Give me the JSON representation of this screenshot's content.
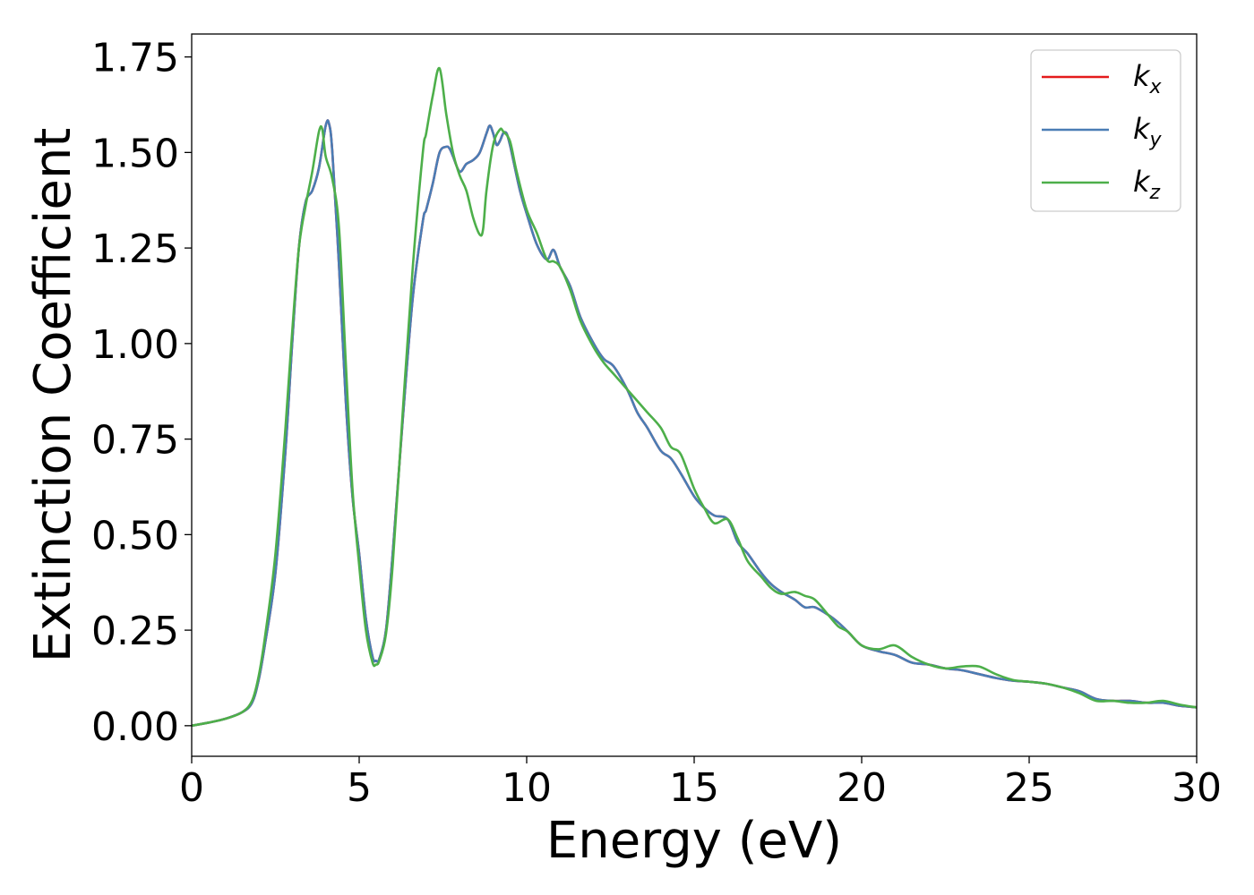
{
  "chart_data": {
    "type": "line",
    "xlabel": "Energy (eV)",
    "ylabel": "Extinction Coefficient",
    "xlim": [
      0,
      30
    ],
    "ylim": [
      -0.08,
      1.81
    ],
    "xticks": [
      0,
      5,
      10,
      15,
      20,
      25,
      30
    ],
    "xtick_labels": [
      "0",
      "5",
      "10",
      "15",
      "20",
      "25",
      "30"
    ],
    "yticks": [
      0.0,
      0.25,
      0.5,
      0.75,
      1.0,
      1.25,
      1.5,
      1.75
    ],
    "ytick_labels": [
      "0.00",
      "0.25",
      "0.50",
      "0.75",
      "1.00",
      "1.25",
      "1.50",
      "1.75"
    ],
    "grid": false,
    "legend_position": "top-right",
    "series": [
      {
        "name": "kx",
        "legend_base": "k",
        "legend_sub": "x",
        "color": "#e41a1c",
        "x": [
          0,
          0.5,
          1.0,
          1.5,
          1.8,
          2.0,
          2.2,
          2.5,
          2.8,
          3.0,
          3.2,
          3.4,
          3.6,
          3.8,
          4.0,
          4.1,
          4.2,
          4.4,
          4.6,
          4.8,
          5.0,
          5.2,
          5.4,
          5.5,
          5.6,
          5.8,
          6.0,
          6.3,
          6.6,
          6.9,
          7.0,
          7.2,
          7.4,
          7.6,
          7.7,
          7.8,
          8.0,
          8.2,
          8.4,
          8.6,
          8.8,
          8.9,
          9.0,
          9.1,
          9.2,
          9.3,
          9.4,
          9.5,
          9.6,
          9.8,
          10.0,
          10.3,
          10.6,
          10.8,
          11.0,
          11.3,
          11.6,
          12.0,
          12.3,
          12.6,
          13.0,
          13.3,
          13.6,
          14.0,
          14.3,
          14.6,
          15.0,
          15.3,
          15.6,
          16.0,
          16.3,
          16.6,
          17.0,
          17.3,
          17.6,
          18.0,
          18.3,
          18.6,
          19.0,
          19.3,
          19.6,
          20.0,
          20.5,
          21.0,
          21.5,
          22.0,
          22.5,
          23.0,
          23.5,
          24.0,
          24.5,
          25.0,
          25.5,
          26.0,
          26.5,
          27.0,
          27.5,
          28.0,
          28.5,
          29.0,
          29.5,
          30.0
        ],
        "y": [
          0.0,
          0.008,
          0.018,
          0.035,
          0.06,
          0.12,
          0.22,
          0.4,
          0.72,
          1.0,
          1.25,
          1.37,
          1.4,
          1.46,
          1.57,
          1.575,
          1.5,
          1.2,
          0.85,
          0.6,
          0.45,
          0.28,
          0.18,
          0.17,
          0.175,
          0.25,
          0.45,
          0.8,
          1.12,
          1.32,
          1.35,
          1.42,
          1.5,
          1.515,
          1.51,
          1.49,
          1.45,
          1.47,
          1.48,
          1.5,
          1.55,
          1.57,
          1.55,
          1.52,
          1.53,
          1.55,
          1.55,
          1.52,
          1.48,
          1.4,
          1.34,
          1.26,
          1.22,
          1.245,
          1.2,
          1.15,
          1.07,
          1.0,
          0.96,
          0.94,
          0.88,
          0.82,
          0.78,
          0.72,
          0.7,
          0.66,
          0.6,
          0.57,
          0.55,
          0.54,
          0.48,
          0.45,
          0.4,
          0.37,
          0.35,
          0.33,
          0.31,
          0.31,
          0.29,
          0.27,
          0.245,
          0.21,
          0.195,
          0.185,
          0.165,
          0.16,
          0.15,
          0.145,
          0.135,
          0.125,
          0.118,
          0.115,
          0.11,
          0.1,
          0.09,
          0.07,
          0.065,
          0.065,
          0.06,
          0.06,
          0.052,
          0.048
        ]
      },
      {
        "name": "ky",
        "legend_base": "k",
        "legend_sub": "y",
        "color": "#4a7db5",
        "x": [
          0,
          0.5,
          1.0,
          1.5,
          1.8,
          2.0,
          2.2,
          2.5,
          2.8,
          3.0,
          3.2,
          3.4,
          3.6,
          3.8,
          4.0,
          4.1,
          4.2,
          4.4,
          4.6,
          4.8,
          5.0,
          5.2,
          5.4,
          5.5,
          5.6,
          5.8,
          6.0,
          6.3,
          6.6,
          6.9,
          7.0,
          7.2,
          7.4,
          7.6,
          7.7,
          7.8,
          8.0,
          8.2,
          8.4,
          8.6,
          8.8,
          8.9,
          9.0,
          9.1,
          9.2,
          9.3,
          9.4,
          9.5,
          9.6,
          9.8,
          10.0,
          10.3,
          10.6,
          10.8,
          11.0,
          11.3,
          11.6,
          12.0,
          12.3,
          12.6,
          13.0,
          13.3,
          13.6,
          14.0,
          14.3,
          14.6,
          15.0,
          15.3,
          15.6,
          16.0,
          16.3,
          16.6,
          17.0,
          17.3,
          17.6,
          18.0,
          18.3,
          18.6,
          19.0,
          19.3,
          19.6,
          20.0,
          20.5,
          21.0,
          21.5,
          22.0,
          22.5,
          23.0,
          23.5,
          24.0,
          24.5,
          25.0,
          25.5,
          26.0,
          26.5,
          27.0,
          27.5,
          28.0,
          28.5,
          29.0,
          29.5,
          30.0
        ],
        "y": [
          0.0,
          0.008,
          0.018,
          0.035,
          0.06,
          0.12,
          0.22,
          0.4,
          0.72,
          1.0,
          1.25,
          1.37,
          1.4,
          1.46,
          1.57,
          1.575,
          1.5,
          1.2,
          0.85,
          0.6,
          0.45,
          0.28,
          0.18,
          0.17,
          0.175,
          0.25,
          0.45,
          0.8,
          1.12,
          1.32,
          1.35,
          1.42,
          1.5,
          1.515,
          1.51,
          1.49,
          1.45,
          1.47,
          1.48,
          1.5,
          1.55,
          1.57,
          1.55,
          1.52,
          1.53,
          1.55,
          1.55,
          1.52,
          1.48,
          1.4,
          1.34,
          1.26,
          1.22,
          1.245,
          1.2,
          1.15,
          1.07,
          1.0,
          0.96,
          0.94,
          0.88,
          0.82,
          0.78,
          0.72,
          0.7,
          0.66,
          0.6,
          0.57,
          0.55,
          0.54,
          0.48,
          0.45,
          0.4,
          0.37,
          0.35,
          0.33,
          0.31,
          0.31,
          0.29,
          0.27,
          0.245,
          0.21,
          0.195,
          0.185,
          0.165,
          0.16,
          0.15,
          0.145,
          0.135,
          0.125,
          0.118,
          0.115,
          0.11,
          0.1,
          0.09,
          0.07,
          0.065,
          0.065,
          0.06,
          0.06,
          0.052,
          0.048
        ]
      },
      {
        "name": "kz",
        "legend_base": "k",
        "legend_sub": "z",
        "color": "#4daf4a",
        "x": [
          0,
          0.5,
          1.0,
          1.5,
          1.8,
          2.0,
          2.2,
          2.5,
          2.8,
          3.0,
          3.2,
          3.4,
          3.6,
          3.8,
          3.9,
          4.0,
          4.2,
          4.4,
          4.6,
          4.8,
          5.0,
          5.2,
          5.4,
          5.5,
          5.6,
          5.8,
          6.0,
          6.3,
          6.6,
          6.9,
          7.0,
          7.2,
          7.4,
          7.6,
          7.8,
          8.0,
          8.2,
          8.4,
          8.6,
          8.7,
          8.8,
          9.0,
          9.2,
          9.3,
          9.5,
          9.7,
          10.0,
          10.3,
          10.6,
          10.8,
          11.0,
          11.3,
          11.6,
          12.0,
          12.3,
          12.6,
          13.0,
          13.3,
          13.6,
          14.0,
          14.3,
          14.6,
          15.0,
          15.3,
          15.6,
          16.0,
          16.3,
          16.6,
          17.0,
          17.3,
          17.6,
          18.0,
          18.3,
          18.6,
          19.0,
          19.3,
          19.6,
          20.0,
          20.5,
          21.0,
          21.5,
          22.0,
          22.5,
          23.0,
          23.5,
          24.0,
          24.5,
          25.0,
          25.5,
          26.0,
          26.5,
          27.0,
          27.5,
          28.0,
          28.5,
          29.0,
          29.5,
          30.0
        ],
        "y": [
          0.0,
          0.008,
          0.018,
          0.035,
          0.065,
          0.13,
          0.24,
          0.45,
          0.78,
          1.03,
          1.25,
          1.36,
          1.45,
          1.555,
          1.56,
          1.49,
          1.43,
          1.3,
          0.95,
          0.62,
          0.42,
          0.25,
          0.165,
          0.16,
          0.17,
          0.24,
          0.42,
          0.82,
          1.2,
          1.5,
          1.55,
          1.65,
          1.72,
          1.6,
          1.5,
          1.44,
          1.4,
          1.33,
          1.285,
          1.3,
          1.4,
          1.52,
          1.56,
          1.555,
          1.53,
          1.45,
          1.35,
          1.29,
          1.22,
          1.215,
          1.2,
          1.14,
          1.06,
          0.99,
          0.95,
          0.92,
          0.88,
          0.85,
          0.82,
          0.78,
          0.73,
          0.71,
          0.62,
          0.57,
          0.53,
          0.54,
          0.49,
          0.43,
          0.39,
          0.36,
          0.345,
          0.35,
          0.34,
          0.33,
          0.29,
          0.26,
          0.245,
          0.21,
          0.2,
          0.21,
          0.18,
          0.16,
          0.15,
          0.155,
          0.155,
          0.135,
          0.12,
          0.115,
          0.11,
          0.1,
          0.085,
          0.065,
          0.065,
          0.06,
          0.06,
          0.065,
          0.055,
          0.048
        ]
      }
    ]
  }
}
